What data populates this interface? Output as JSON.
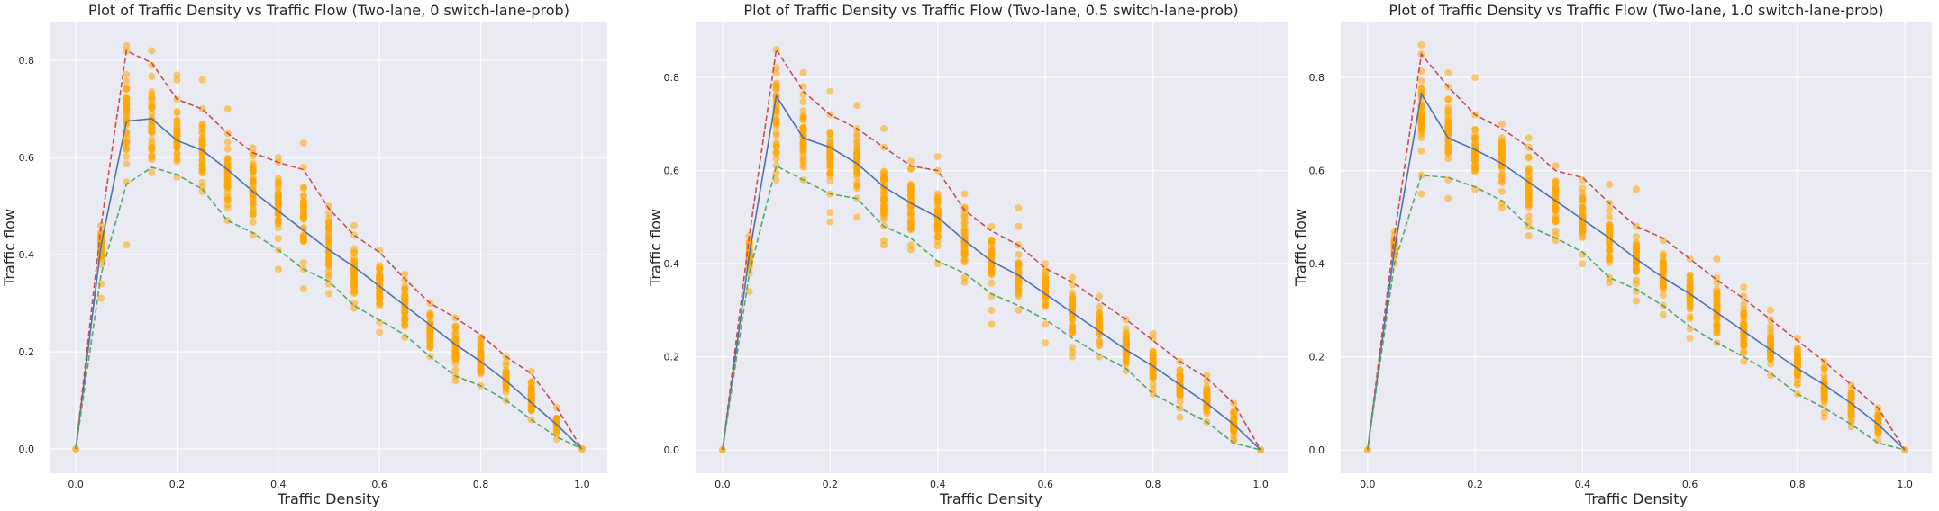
{
  "colors": {
    "background": "#EAEAF2",
    "grid": "#FFFFFF",
    "mean_line": "#4C72B0",
    "max_line": "#C44E52",
    "min_line": "#55A868",
    "points": "#FFA500"
  },
  "chart_data": [
    {
      "type": "scatter",
      "title": "Plot of Traffic Density vs Traffic Flow (Two-lane, 0 switch-lane-prob)",
      "xlabel": "Traffic Density",
      "ylabel": "Traffic flow",
      "xlim": [
        -0.05,
        1.05
      ],
      "ylim": [
        -0.05,
        0.88
      ],
      "xticks": [
        "0.0",
        "0.2",
        "0.4",
        "0.6",
        "0.8",
        "1.0"
      ],
      "yticks": [
        "0.0",
        "0.2",
        "0.4",
        "0.6",
        "0.8"
      ],
      "grid": true,
      "x": [
        0,
        0.05,
        0.1,
        0.15,
        0.2,
        0.25,
        0.3,
        0.35,
        0.4,
        0.45,
        0.5,
        0.55,
        0.6,
        0.65,
        0.7,
        0.75,
        0.8,
        0.85,
        0.9,
        0.95,
        1.0
      ],
      "series": [
        {
          "style": "solid",
          "color": "#4C72B0",
          "values": [
            0,
            0.42,
            0.675,
            0.68,
            0.635,
            0.615,
            0.575,
            0.53,
            0.49,
            0.45,
            0.41,
            0.375,
            0.335,
            0.295,
            0.255,
            0.215,
            0.18,
            0.14,
            0.095,
            0.05,
            0
          ]
        },
        {
          "style": "dashed",
          "color": "#C44E52",
          "values": [
            0,
            0.46,
            0.82,
            0.795,
            0.72,
            0.7,
            0.65,
            0.61,
            0.59,
            0.575,
            0.495,
            0.44,
            0.405,
            0.35,
            0.3,
            0.27,
            0.235,
            0.19,
            0.155,
            0.085,
            0
          ]
        },
        {
          "style": "dashed",
          "color": "#55A868",
          "values": [
            0,
            0.36,
            0.545,
            0.58,
            0.565,
            0.535,
            0.47,
            0.445,
            0.41,
            0.37,
            0.345,
            0.295,
            0.265,
            0.235,
            0.19,
            0.15,
            0.13,
            0.1,
            0.06,
            0.025,
            0
          ]
        }
      ],
      "scatter_ranges": [
        {
          "x": 0.0,
          "lo": 0.0,
          "hi": 0.0,
          "extra": []
        },
        {
          "x": 0.05,
          "lo": 0.38,
          "hi": 0.46,
          "extra": [
            0.31,
            0.34
          ]
        },
        {
          "x": 0.1,
          "lo": 0.55,
          "hi": 0.82,
          "extra": [
            0.42,
            0.83
          ]
        },
        {
          "x": 0.15,
          "lo": 0.57,
          "hi": 0.79,
          "extra": [
            0.82
          ]
        },
        {
          "x": 0.2,
          "lo": 0.56,
          "hi": 0.72,
          "extra": [
            0.77,
            0.76
          ]
        },
        {
          "x": 0.25,
          "lo": 0.53,
          "hi": 0.7,
          "extra": [
            0.76
          ]
        },
        {
          "x": 0.3,
          "lo": 0.47,
          "hi": 0.65,
          "extra": [
            0.7
          ]
        },
        {
          "x": 0.35,
          "lo": 0.44,
          "hi": 0.62,
          "extra": []
        },
        {
          "x": 0.4,
          "lo": 0.41,
          "hi": 0.6,
          "extra": [
            0.37
          ]
        },
        {
          "x": 0.45,
          "lo": 0.37,
          "hi": 0.58,
          "extra": [
            0.33,
            0.63
          ]
        },
        {
          "x": 0.5,
          "lo": 0.34,
          "hi": 0.5,
          "extra": [
            0.32
          ]
        },
        {
          "x": 0.55,
          "lo": 0.3,
          "hi": 0.44,
          "extra": [
            0.29,
            0.46
          ]
        },
        {
          "x": 0.6,
          "lo": 0.26,
          "hi": 0.41,
          "extra": [
            0.24
          ]
        },
        {
          "x": 0.65,
          "lo": 0.23,
          "hi": 0.36,
          "extra": []
        },
        {
          "x": 0.7,
          "lo": 0.19,
          "hi": 0.3,
          "extra": []
        },
        {
          "x": 0.75,
          "lo": 0.15,
          "hi": 0.27,
          "extra": [
            0.14
          ]
        },
        {
          "x": 0.8,
          "lo": 0.13,
          "hi": 0.23,
          "extra": []
        },
        {
          "x": 0.85,
          "lo": 0.1,
          "hi": 0.19,
          "extra": []
        },
        {
          "x": 0.9,
          "lo": 0.06,
          "hi": 0.16,
          "extra": []
        },
        {
          "x": 0.95,
          "lo": 0.02,
          "hi": 0.085,
          "extra": []
        },
        {
          "x": 1.0,
          "lo": 0.0,
          "hi": 0.0,
          "extra": []
        }
      ]
    },
    {
      "type": "scatter",
      "title": "Plot of Traffic Density vs Traffic Flow (Two-lane, 0.5 switch-lane-prob)",
      "xlabel": "Traffic Density",
      "ylabel": "Traffic flow",
      "xlim": [
        -0.05,
        1.05
      ],
      "ylim": [
        -0.05,
        0.92
      ],
      "xticks": [
        "0.0",
        "0.2",
        "0.4",
        "0.6",
        "0.8",
        "1.0"
      ],
      "yticks": [
        "0.0",
        "0.2",
        "0.4",
        "0.6",
        "0.8"
      ],
      "grid": true,
      "x": [
        0,
        0.05,
        0.1,
        0.15,
        0.2,
        0.25,
        0.3,
        0.35,
        0.4,
        0.45,
        0.5,
        0.55,
        0.6,
        0.65,
        0.7,
        0.75,
        0.8,
        0.85,
        0.9,
        0.95,
        1.0
      ],
      "series": [
        {
          "style": "solid",
          "color": "#4C72B0",
          "values": [
            0,
            0.42,
            0.76,
            0.67,
            0.65,
            0.615,
            0.565,
            0.53,
            0.5,
            0.45,
            0.405,
            0.375,
            0.335,
            0.295,
            0.255,
            0.215,
            0.18,
            0.14,
            0.1,
            0.055,
            0
          ]
        },
        {
          "style": "dashed",
          "color": "#C44E52",
          "values": [
            0,
            0.46,
            0.86,
            0.77,
            0.72,
            0.69,
            0.65,
            0.61,
            0.6,
            0.515,
            0.47,
            0.44,
            0.39,
            0.36,
            0.32,
            0.28,
            0.235,
            0.19,
            0.155,
            0.1,
            0
          ]
        },
        {
          "style": "dashed",
          "color": "#55A868",
          "values": [
            0,
            0.38,
            0.61,
            0.58,
            0.55,
            0.54,
            0.48,
            0.455,
            0.405,
            0.38,
            0.335,
            0.31,
            0.28,
            0.24,
            0.205,
            0.175,
            0.12,
            0.09,
            0.06,
            0.015,
            0
          ]
        }
      ],
      "scatter_ranges": [
        {
          "x": 0.0,
          "lo": 0.0,
          "hi": 0.0,
          "extra": []
        },
        {
          "x": 0.05,
          "lo": 0.38,
          "hi": 0.46,
          "extra": [
            0.34
          ]
        },
        {
          "x": 0.1,
          "lo": 0.58,
          "hi": 0.86,
          "extra": []
        },
        {
          "x": 0.15,
          "lo": 0.58,
          "hi": 0.78,
          "extra": [
            0.81
          ]
        },
        {
          "x": 0.2,
          "lo": 0.55,
          "hi": 0.72,
          "extra": [
            0.51,
            0.49,
            0.77
          ]
        },
        {
          "x": 0.25,
          "lo": 0.54,
          "hi": 0.69,
          "extra": [
            0.74,
            0.5
          ]
        },
        {
          "x": 0.3,
          "lo": 0.45,
          "hi": 0.65,
          "extra": [
            0.44,
            0.69
          ]
        },
        {
          "x": 0.35,
          "lo": 0.44,
          "hi": 0.62,
          "extra": [
            0.43
          ]
        },
        {
          "x": 0.4,
          "lo": 0.4,
          "hi": 0.6,
          "extra": [
            0.63
          ]
        },
        {
          "x": 0.45,
          "lo": 0.37,
          "hi": 0.55,
          "extra": [
            0.36
          ]
        },
        {
          "x": 0.5,
          "lo": 0.33,
          "hi": 0.48,
          "extra": [
            0.27,
            0.3
          ]
        },
        {
          "x": 0.55,
          "lo": 0.3,
          "hi": 0.44,
          "extra": [
            0.52,
            0.48
          ]
        },
        {
          "x": 0.6,
          "lo": 0.27,
          "hi": 0.4,
          "extra": [
            0.23
          ]
        },
        {
          "x": 0.65,
          "lo": 0.22,
          "hi": 0.37,
          "extra": [
            0.2,
            0.21
          ]
        },
        {
          "x": 0.7,
          "lo": 0.2,
          "hi": 0.33,
          "extra": []
        },
        {
          "x": 0.75,
          "lo": 0.17,
          "hi": 0.28,
          "extra": []
        },
        {
          "x": 0.8,
          "lo": 0.12,
          "hi": 0.24,
          "extra": [
            0.25
          ]
        },
        {
          "x": 0.85,
          "lo": 0.09,
          "hi": 0.19,
          "extra": [
            0.07
          ]
        },
        {
          "x": 0.9,
          "lo": 0.06,
          "hi": 0.16,
          "extra": []
        },
        {
          "x": 0.95,
          "lo": 0.02,
          "hi": 0.1,
          "extra": []
        },
        {
          "x": 1.0,
          "lo": 0.0,
          "hi": 0.0,
          "extra": []
        }
      ]
    },
    {
      "type": "scatter",
      "title": "Plot of Traffic Density vs Traffic Flow (Two-lane, 1.0 switch-lane-prob)",
      "xlabel": "Traffic Density",
      "ylabel": "Traffic flow",
      "xlim": [
        -0.05,
        1.05
      ],
      "ylim": [
        -0.05,
        0.92
      ],
      "xticks": [
        "0.0",
        "0.2",
        "0.4",
        "0.6",
        "0.8",
        "1.0"
      ],
      "yticks": [
        "0.0",
        "0.2",
        "0.4",
        "0.6",
        "0.8"
      ],
      "grid": true,
      "x": [
        0,
        0.05,
        0.1,
        0.15,
        0.2,
        0.25,
        0.3,
        0.35,
        0.4,
        0.45,
        0.5,
        0.55,
        0.6,
        0.65,
        0.7,
        0.75,
        0.8,
        0.85,
        0.9,
        0.95,
        1.0
      ],
      "series": [
        {
          "style": "solid",
          "color": "#4C72B0",
          "values": [
            0,
            0.43,
            0.765,
            0.67,
            0.645,
            0.615,
            0.575,
            0.535,
            0.495,
            0.455,
            0.41,
            0.37,
            0.335,
            0.295,
            0.255,
            0.215,
            0.175,
            0.14,
            0.1,
            0.055,
            0
          ]
        },
        {
          "style": "dashed",
          "color": "#C44E52",
          "values": [
            0,
            0.46,
            0.85,
            0.78,
            0.72,
            0.69,
            0.65,
            0.6,
            0.585,
            0.53,
            0.48,
            0.455,
            0.41,
            0.365,
            0.325,
            0.28,
            0.235,
            0.19,
            0.14,
            0.09,
            0
          ]
        },
        {
          "style": "dashed",
          "color": "#55A868",
          "values": [
            0,
            0.4,
            0.59,
            0.585,
            0.565,
            0.535,
            0.48,
            0.455,
            0.425,
            0.37,
            0.345,
            0.31,
            0.265,
            0.23,
            0.2,
            0.165,
            0.12,
            0.09,
            0.055,
            0.015,
            0
          ]
        }
      ],
      "scatter_ranges": [
        {
          "x": 0.0,
          "lo": 0.0,
          "hi": 0.0,
          "extra": []
        },
        {
          "x": 0.05,
          "lo": 0.4,
          "hi": 0.47,
          "extra": []
        },
        {
          "x": 0.1,
          "lo": 0.59,
          "hi": 0.85,
          "extra": [
            0.55,
            0.87
          ]
        },
        {
          "x": 0.15,
          "lo": 0.58,
          "hi": 0.78,
          "extra": [
            0.54,
            0.81
          ]
        },
        {
          "x": 0.2,
          "lo": 0.56,
          "hi": 0.72,
          "extra": [
            0.8
          ]
        },
        {
          "x": 0.25,
          "lo": 0.53,
          "hi": 0.7,
          "extra": [
            0.52
          ]
        },
        {
          "x": 0.3,
          "lo": 0.48,
          "hi": 0.65,
          "extra": [
            0.46,
            0.67
          ]
        },
        {
          "x": 0.35,
          "lo": 0.45,
          "hi": 0.61,
          "extra": []
        },
        {
          "x": 0.4,
          "lo": 0.42,
          "hi": 0.58,
          "extra": [
            0.4
          ]
        },
        {
          "x": 0.45,
          "lo": 0.37,
          "hi": 0.53,
          "extra": [
            0.36,
            0.57
          ]
        },
        {
          "x": 0.5,
          "lo": 0.34,
          "hi": 0.48,
          "extra": [
            0.32,
            0.56
          ]
        },
        {
          "x": 0.55,
          "lo": 0.31,
          "hi": 0.45,
          "extra": [
            0.29
          ]
        },
        {
          "x": 0.6,
          "lo": 0.26,
          "hi": 0.41,
          "extra": [
            0.24
          ]
        },
        {
          "x": 0.65,
          "lo": 0.23,
          "hi": 0.37,
          "extra": [
            0.41
          ]
        },
        {
          "x": 0.7,
          "lo": 0.19,
          "hi": 0.33,
          "extra": [
            0.35
          ]
        },
        {
          "x": 0.75,
          "lo": 0.16,
          "hi": 0.28,
          "extra": [
            0.3
          ]
        },
        {
          "x": 0.8,
          "lo": 0.12,
          "hi": 0.24,
          "extra": []
        },
        {
          "x": 0.85,
          "lo": 0.08,
          "hi": 0.19,
          "extra": [
            0.07
          ]
        },
        {
          "x": 0.9,
          "lo": 0.05,
          "hi": 0.14,
          "extra": []
        },
        {
          "x": 0.95,
          "lo": 0.02,
          "hi": 0.09,
          "extra": []
        },
        {
          "x": 1.0,
          "lo": 0.0,
          "hi": 0.0,
          "extra": []
        }
      ]
    }
  ]
}
